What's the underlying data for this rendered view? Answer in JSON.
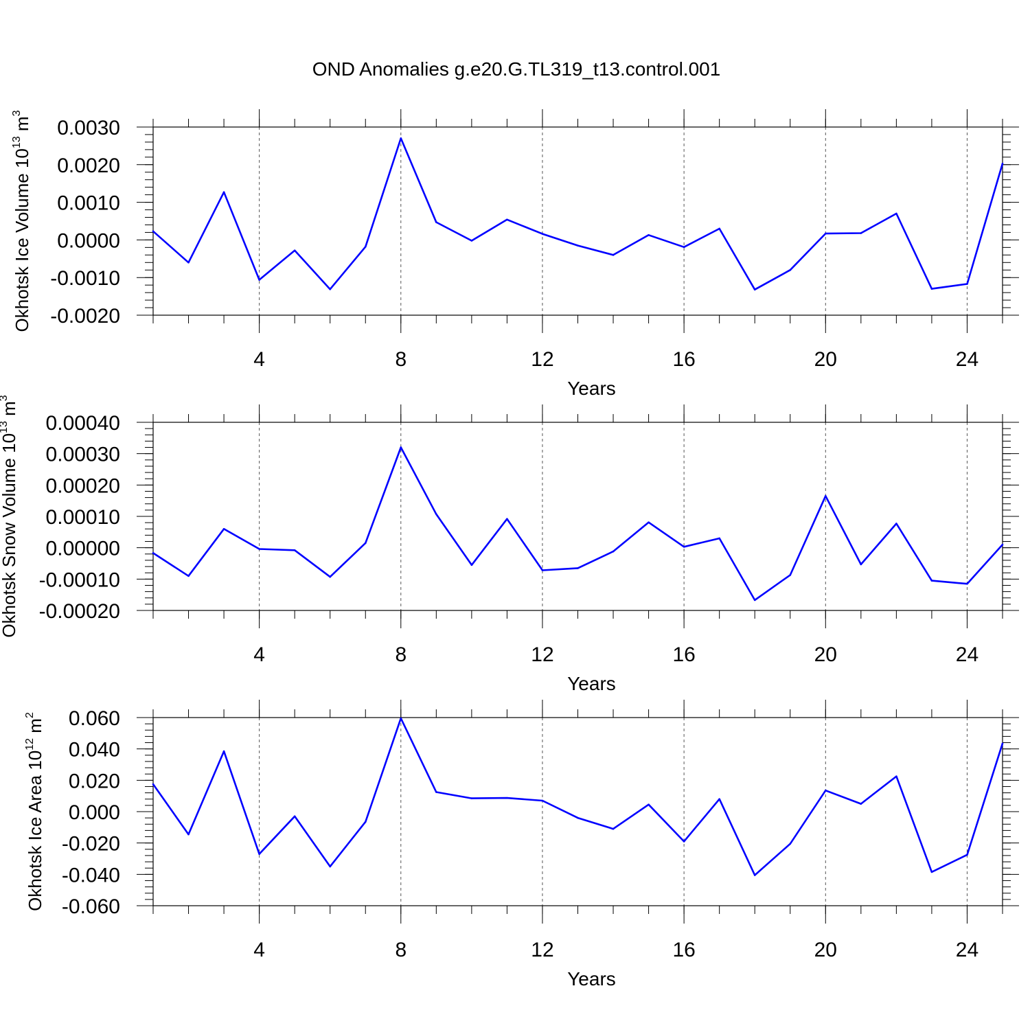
{
  "title": "OND Anomalies g.e20.G.TL319_t13.control.001",
  "line_color": "#0000ff",
  "chart_data": [
    {
      "type": "line",
      "ylabel": "Okhotsk Ice Volume 10",
      "ylabel_sup": "13",
      "ylabel_unit": " m",
      "ylabel_unit_sup": "3",
      "xlabel": "Years",
      "x": [
        1,
        2,
        3,
        4,
        5,
        6,
        7,
        8,
        9,
        10,
        11,
        12,
        13,
        14,
        15,
        16,
        17,
        18,
        19,
        20,
        21,
        22,
        23,
        24,
        25
      ],
      "values": [
        0.00023,
        -0.0006,
        0.00127,
        -0.00106,
        -0.00028,
        -0.00131,
        -0.00018,
        0.0027,
        0.00047,
        -2e-05,
        0.00054,
        0.00016,
        -0.00015,
        -0.0004,
        0.00013,
        -0.00019,
        0.0003,
        -0.00132,
        -0.0008,
        0.00017,
        0.00018,
        0.0007,
        -0.0013,
        -0.00117,
        0.00203
      ],
      "xlim": [
        1,
        25
      ],
      "ylim": [
        -0.002,
        0.003
      ],
      "xticks": [
        4,
        8,
        12,
        16,
        20,
        24
      ],
      "xtick_labels": [
        "4",
        "8",
        "12",
        "16",
        "20",
        "24"
      ],
      "yticks": [
        -0.002,
        -0.001,
        0.0,
        0.001,
        0.002,
        0.003
      ],
      "ytick_labels": [
        "-0.0020",
        "-0.0010",
        "0.0000",
        "0.0010",
        "0.0020",
        "0.0030"
      ],
      "grid": "x"
    },
    {
      "type": "line",
      "ylabel": "Okhotsk Snow Volume 10",
      "ylabel_sup": "13",
      "ylabel_unit": " m",
      "ylabel_unit_sup": "3",
      "xlabel": "Years",
      "x": [
        1,
        2,
        3,
        4,
        5,
        6,
        7,
        8,
        9,
        10,
        11,
        12,
        13,
        14,
        15,
        16,
        17,
        18,
        19,
        20,
        21,
        22,
        23,
        24,
        25
      ],
      "values": [
        -1.7e-05,
        -9e-05,
        6e-05,
        -4e-06,
        -8e-06,
        -9.3e-05,
        1.5e-05,
        0.00032,
        0.000107,
        -5.5e-05,
        9.2e-05,
        -7.2e-05,
        -6.5e-05,
        -1.2e-05,
        8.1e-05,
        3e-06,
        3e-05,
        -0.000167,
        -8.7e-05,
        0.000165,
        -5.3e-05,
        7.7e-05,
        -0.000105,
        -0.000115,
        1e-05
      ],
      "xlim": [
        1,
        25
      ],
      "ylim": [
        -0.0002,
        0.0004
      ],
      "xticks": [
        4,
        8,
        12,
        16,
        20,
        24
      ],
      "xtick_labels": [
        "4",
        "8",
        "12",
        "16",
        "20",
        "24"
      ],
      "yticks": [
        -0.0002,
        -0.0001,
        0.0,
        0.0001,
        0.0002,
        0.0003,
        0.0004
      ],
      "ytick_labels": [
        "-0.00020",
        "-0.00010",
        "0.00000",
        "0.00010",
        "0.00020",
        "0.00030",
        "0.00040"
      ],
      "grid": "x"
    },
    {
      "type": "line",
      "ylabel": "Okhotsk Ice Area 10",
      "ylabel_sup": "12",
      "ylabel_unit": " m",
      "ylabel_unit_sup": "2",
      "xlabel": "Years",
      "x": [
        1,
        2,
        3,
        4,
        5,
        6,
        7,
        8,
        9,
        10,
        11,
        12,
        13,
        14,
        15,
        16,
        17,
        18,
        19,
        20,
        21,
        22,
        23,
        24,
        25
      ],
      "values": [
        0.0175,
        -0.0145,
        0.0385,
        -0.027,
        -0.003,
        -0.035,
        -0.0065,
        0.0595,
        0.0125,
        0.0085,
        0.0087,
        0.007,
        -0.004,
        -0.011,
        0.0045,
        -0.019,
        0.008,
        -0.0405,
        -0.0205,
        0.0135,
        0.005,
        0.0225,
        -0.0385,
        -0.0275,
        0.0435
      ],
      "xlim": [
        1,
        25
      ],
      "ylim": [
        -0.06,
        0.06
      ],
      "xticks": [
        4,
        8,
        12,
        16,
        20,
        24
      ],
      "xtick_labels": [
        "4",
        "8",
        "12",
        "16",
        "20",
        "24"
      ],
      "yticks": [
        -0.06,
        -0.04,
        -0.02,
        0.0,
        0.02,
        0.04,
        0.06
      ],
      "ytick_labels": [
        "-0.060",
        "-0.040",
        "-0.020",
        "0.000",
        "0.020",
        "0.040",
        "0.060"
      ],
      "grid": "x"
    }
  ]
}
